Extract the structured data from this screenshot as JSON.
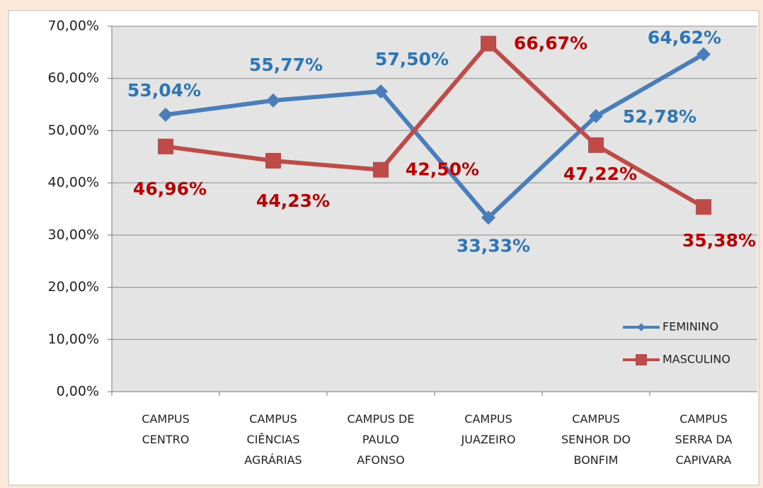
{
  "chart_data": {
    "type": "line",
    "categories": [
      [
        "CAMPUS",
        "CENTRO"
      ],
      [
        "CAMPUS",
        "CIÊNCIAS",
        "AGRÁRIAS"
      ],
      [
        "CAMPUS DE",
        "PAULO",
        "AFONSO"
      ],
      [
        "CAMPUS",
        "JUAZEIRO"
      ],
      [
        "CAMPUS",
        "SENHOR DO",
        "BONFIM"
      ],
      [
        "CAMPUS",
        "SERRA DA",
        "CAPIVARA"
      ]
    ],
    "series": [
      {
        "name": "FEMININO",
        "color": "#4a7ebb",
        "label_color": "#2e75b6",
        "marker": "diamond",
        "values": [
          53.04,
          55.77,
          57.5,
          33.33,
          52.78,
          64.62
        ],
        "value_labels": [
          "53,04%",
          "55,77%",
          "57,50%",
          "33,33%",
          "52,78%",
          "64,62%"
        ]
      },
      {
        "name": "MASCULINO",
        "color": "#be4b48",
        "label_color": "#c00000",
        "marker": "square",
        "values": [
          46.96,
          44.23,
          42.5,
          66.67,
          47.22,
          35.38
        ],
        "value_labels": [
          "46,96%",
          "44,23%",
          "42,50%",
          "66,67%",
          "47,22%",
          "35,38%"
        ]
      }
    ],
    "ylim": [
      0,
      70
    ],
    "yticks": [
      {
        "value": 0,
        "label": "0,00%"
      },
      {
        "value": 10,
        "label": "10,00%"
      },
      {
        "value": 20,
        "label": "20,00%"
      },
      {
        "value": 30,
        "label": "30,00%"
      },
      {
        "value": 40,
        "label": "40,00%"
      },
      {
        "value": 50,
        "label": "50,00%"
      },
      {
        "value": 60,
        "label": "60,00%"
      },
      {
        "value": 70,
        "label": "70,00%"
      }
    ],
    "grid": true,
    "legend": "lower right"
  }
}
